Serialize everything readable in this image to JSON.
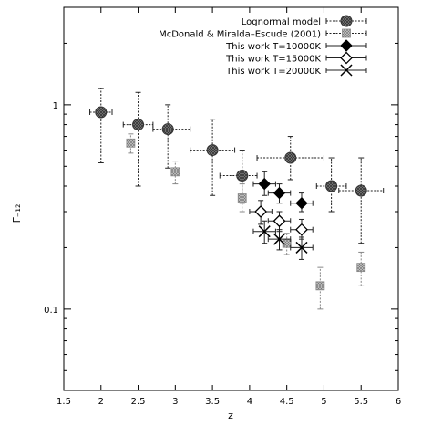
{
  "chart_data": {
    "type": "scatter",
    "title": "",
    "xlabel": "z",
    "ylabel": "Γ₋₁₂",
    "xlim": [
      1.5,
      6
    ],
    "ylim": [
      0.04,
      3
    ],
    "yscale": "log",
    "grid": false,
    "legend_position": "top-right",
    "xticks": [
      "1.5",
      "2",
      "2.5",
      "3",
      "3.5",
      "4",
      "4.5",
      "5",
      "5.5",
      "6"
    ],
    "yticks": [
      {
        "value": 1,
        "label": "1"
      },
      {
        "value": 0.1,
        "label": "0.1"
      }
    ],
    "series": [
      {
        "name": "Lognormal model",
        "marker": "circle-hatched",
        "color": "#555555",
        "points": [
          {
            "x": 2.0,
            "y": 0.92,
            "xerr": [
              0.15,
              0.15
            ],
            "yerr": [
              0.52,
              1.2
            ]
          },
          {
            "x": 2.5,
            "y": 0.8,
            "xerr": [
              0.2,
              0.2
            ],
            "yerr": [
              0.4,
              1.15
            ]
          },
          {
            "x": 2.9,
            "y": 0.76,
            "xerr": [
              0.2,
              0.3
            ],
            "yerr": [
              0.49,
              1.0
            ]
          },
          {
            "x": 3.5,
            "y": 0.6,
            "xerr": [
              0.3,
              0.3
            ],
            "yerr": [
              0.36,
              0.85
            ]
          },
          {
            "x": 3.9,
            "y": 0.45,
            "xerr": [
              0.3,
              0.2
            ],
            "yerr": [
              0.33,
              0.6
            ]
          },
          {
            "x": 4.55,
            "y": 0.55,
            "xerr": [
              0.45,
              0.45
            ],
            "yerr": [
              0.43,
              0.7
            ]
          },
          {
            "x": 5.1,
            "y": 0.4,
            "xerr": [
              0.2,
              0.2
            ],
            "yerr": [
              0.3,
              0.55
            ]
          },
          {
            "x": 5.5,
            "y": 0.38,
            "xerr": [
              0.3,
              0.3
            ],
            "yerr": [
              0.21,
              0.55
            ]
          }
        ]
      },
      {
        "name": "McDonald & Miralda–Escude (2001)",
        "marker": "square-hatched",
        "color": "#999999",
        "points": [
          {
            "x": 2.4,
            "y": 0.65,
            "xerr": [
              0.05,
              0.05
            ],
            "yerr": [
              0.58,
              0.72
            ]
          },
          {
            "x": 3.0,
            "y": 0.47,
            "xerr": [
              0.05,
              0.05
            ],
            "yerr": [
              0.41,
              0.53
            ]
          },
          {
            "x": 3.9,
            "y": 0.35,
            "xerr": [
              0.05,
              0.05
            ],
            "yerr": [
              0.3,
              0.41
            ]
          },
          {
            "x": 4.5,
            "y": 0.21,
            "xerr": [
              0.05,
              0.05
            ],
            "yerr": [
              0.185,
              0.235
            ]
          },
          {
            "x": 4.95,
            "y": 0.13,
            "xerr": [
              0.05,
              0.05
            ],
            "yerr": [
              0.1,
              0.16
            ]
          },
          {
            "x": 5.5,
            "y": 0.16,
            "xerr": [
              0.05,
              0.05
            ],
            "yerr": [
              0.13,
              0.19
            ]
          }
        ]
      },
      {
        "name": "This work T=10000K",
        "marker": "diamond-filled",
        "color": "#000000",
        "points": [
          {
            "x": 4.2,
            "y": 0.41,
            "xerr": [
              0.15,
              0.15
            ],
            "yerr": [
              0.36,
              0.47
            ]
          },
          {
            "x": 4.4,
            "y": 0.37,
            "xerr": [
              0.15,
              0.15
            ],
            "yerr": [
              0.33,
              0.41
            ]
          },
          {
            "x": 4.7,
            "y": 0.33,
            "xerr": [
              0.15,
              0.15
            ],
            "yerr": [
              0.3,
              0.37
            ]
          }
        ]
      },
      {
        "name": "This work T=15000K",
        "marker": "diamond-open",
        "color": "#000000",
        "points": [
          {
            "x": 4.15,
            "y": 0.3,
            "xerr": [
              0.15,
              0.15
            ],
            "yerr": [
              0.26,
              0.34
            ]
          },
          {
            "x": 4.4,
            "y": 0.27,
            "xerr": [
              0.15,
              0.15
            ],
            "yerr": [
              0.24,
              0.3
            ]
          },
          {
            "x": 4.7,
            "y": 0.245,
            "xerr": [
              0.15,
              0.15
            ],
            "yerr": [
              0.22,
              0.275
            ]
          }
        ]
      },
      {
        "name": "This work T=20000K",
        "marker": "x",
        "color": "#000000",
        "points": [
          {
            "x": 4.2,
            "y": 0.24,
            "xerr": [
              0.15,
              0.15
            ],
            "yerr": [
              0.21,
              0.27
            ]
          },
          {
            "x": 4.4,
            "y": 0.22,
            "xerr": [
              0.15,
              0.15
            ],
            "yerr": [
              0.195,
              0.245
            ]
          },
          {
            "x": 4.7,
            "y": 0.2,
            "xerr": [
              0.15,
              0.15
            ],
            "yerr": [
              0.175,
              0.225
            ]
          }
        ]
      }
    ]
  }
}
